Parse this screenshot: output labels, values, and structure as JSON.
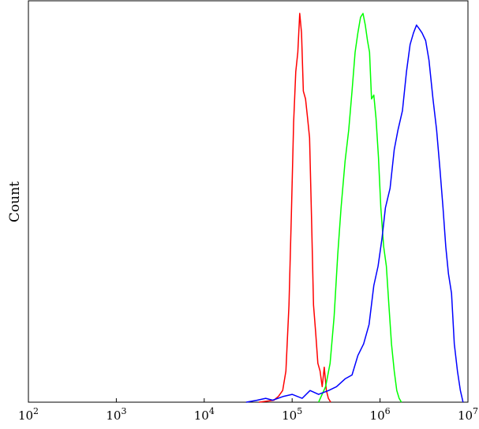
{
  "chart_data": {
    "type": "line",
    "title": "",
    "xlabel": "",
    "ylabel": "Count",
    "xscale": "log",
    "xlim": [
      100,
      10000000
    ],
    "ylim": [
      0,
      100
    ],
    "grid": false,
    "x_ticks": [
      {
        "value": 100,
        "base": "10",
        "exp": "2"
      },
      {
        "value": 1000,
        "base": "10",
        "exp": "3"
      },
      {
        "value": 10000,
        "base": "10",
        "exp": "4"
      },
      {
        "value": 100000,
        "base": "10",
        "exp": "5"
      },
      {
        "value": 1000000,
        "base": "10",
        "exp": "6"
      },
      {
        "value": 10000000,
        "base": "10",
        "exp": "7"
      }
    ],
    "series": [
      {
        "color": "#ff0000",
        "x": [
          42000,
          62000,
          70000,
          78000,
          85000,
          92000,
          98000,
          104000,
          110000,
          116000,
          122000,
          128000,
          134000,
          142000,
          150000,
          158000,
          166000,
          175000,
          185000,
          196000,
          208000,
          220000,
          232000,
          245000,
          258000,
          275000
        ],
        "y": [
          0,
          0.5,
          1.5,
          3,
          8,
          25,
          48,
          72,
          85,
          90,
          100,
          95,
          80,
          78,
          73,
          68,
          48,
          25,
          18,
          10,
          8,
          4,
          9,
          3,
          1,
          0
        ]
      },
      {
        "color": "#00ff00",
        "x": [
          200000,
          240000,
          270000,
          300000,
          330000,
          360000,
          400000,
          440000,
          480000,
          520000,
          560000,
          600000,
          640000,
          680000,
          720000,
          760000,
          800000,
          850000,
          900000,
          960000,
          1020000,
          1100000,
          1180000,
          1260000,
          1350000,
          1450000,
          1550000,
          1650000,
          1750000
        ],
        "y": [
          0,
          4,
          10,
          22,
          38,
          50,
          62,
          70,
          80,
          90,
          95,
          99,
          100,
          97,
          93,
          90,
          78,
          79,
          73,
          63,
          50,
          40,
          35,
          25,
          15,
          8,
          3,
          1,
          0
        ]
      },
      {
        "color": "#0000ff",
        "x": [
          30000,
          40000,
          50000,
          60000,
          80000,
          100000,
          130000,
          160000,
          200000,
          260000,
          320000,
          400000,
          480000,
          560000,
          650000,
          750000,
          850000,
          950000,
          1050000,
          1150000,
          1300000,
          1450000,
          1600000,
          1800000,
          2000000,
          2200000,
          2400000,
          2600000,
          2800000,
          3000000,
          3300000,
          3600000,
          4000000,
          4400000,
          4800000,
          5200000,
          5600000,
          6000000,
          6500000,
          7000000,
          7600000,
          8200000,
          8800000
        ],
        "y": [
          0,
          0.5,
          1,
          0.5,
          1.5,
          2,
          1,
          3,
          2,
          3,
          4,
          6,
          7,
          12,
          15,
          20,
          30,
          35,
          42,
          50,
          55,
          65,
          70,
          75,
          85,
          92,
          95,
          97,
          96,
          95,
          93,
          88,
          78,
          70,
          60,
          50,
          40,
          33,
          28,
          15,
          8,
          3,
          0
        ]
      }
    ]
  }
}
